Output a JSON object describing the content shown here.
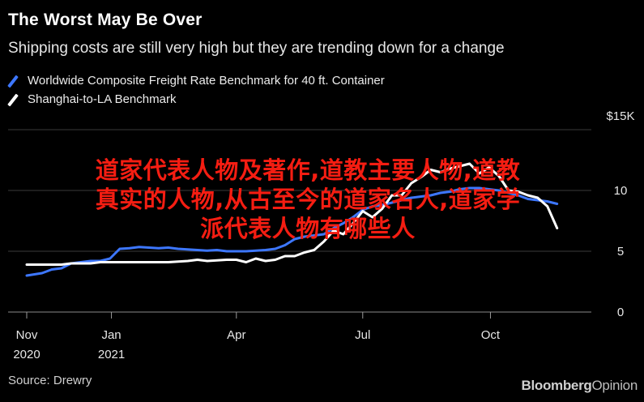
{
  "header": {
    "title": "The Worst May Be Over",
    "subtitle": "Shipping costs are still very high but they are trending down for a change"
  },
  "footer": {
    "source": "Source: Drewry",
    "brand_main": "Bloomberg",
    "brand_suffix": "Opinion"
  },
  "overlay": {
    "line1": "道家代表人物及著作,道教主要人物,道教",
    "line2": "真实的人物,从古至今的道家名人,道家学",
    "line3": "派代表人物有哪些人"
  },
  "colors": {
    "background": "#000000",
    "series_composite": "#3d77ff",
    "series_shanghai": "#ffffff",
    "gridline": "#3a3a3a",
    "overlay_text": "#f51d12"
  },
  "chart_data": {
    "type": "line",
    "title": "The Worst May Be Over",
    "subtitle": "Shipping costs are still very high but they are trending down for a change",
    "x_ticks": [
      {
        "date": "2020-11-01",
        "label": "Nov",
        "sublabel": "2020"
      },
      {
        "date": "2021-01-01",
        "label": "Jan",
        "sublabel": "2021"
      },
      {
        "date": "2021-04-01",
        "label": "Apr",
        "sublabel": ""
      },
      {
        "date": "2021-07-01",
        "label": "Jul",
        "sublabel": ""
      },
      {
        "date": "2021-10-01",
        "label": "Oct",
        "sublabel": ""
      }
    ],
    "y_ticks": [
      {
        "value": 0,
        "label": "0"
      },
      {
        "value": 5,
        "label": "5"
      },
      {
        "value": 10,
        "label": "10"
      },
      {
        "value": 15,
        "label": "$15K"
      }
    ],
    "ylim": [
      0,
      15
    ],
    "xlim": [
      "2020-11-01",
      "2021-12-01"
    ],
    "grid": true,
    "legend_position": "top-left",
    "series": [
      {
        "name": "Worldwide Composite Freight Rate Benchmark for 40 ft. Container",
        "color": "#3d77ff",
        "points": [
          [
            "2020-11-01",
            3.0
          ],
          [
            "2020-11-12",
            3.2
          ],
          [
            "2020-11-19",
            3.5
          ],
          [
            "2020-11-26",
            3.6
          ],
          [
            "2020-12-03",
            4.0
          ],
          [
            "2020-12-10",
            4.1
          ],
          [
            "2020-12-17",
            4.2
          ],
          [
            "2020-12-24",
            4.2
          ],
          [
            "2020-12-31",
            4.4
          ],
          [
            "2021-01-07",
            5.2
          ],
          [
            "2021-01-14",
            5.25
          ],
          [
            "2021-01-21",
            5.35
          ],
          [
            "2021-01-28",
            5.3
          ],
          [
            "2021-02-04",
            5.25
          ],
          [
            "2021-02-11",
            5.3
          ],
          [
            "2021-02-18",
            5.2
          ],
          [
            "2021-02-25",
            5.15
          ],
          [
            "2021-03-04",
            5.1
          ],
          [
            "2021-03-11",
            5.05
          ],
          [
            "2021-03-18",
            5.1
          ],
          [
            "2021-03-25",
            5.0
          ],
          [
            "2021-04-01",
            5.0
          ],
          [
            "2021-04-08",
            5.0
          ],
          [
            "2021-04-15",
            5.05
          ],
          [
            "2021-04-22",
            5.1
          ],
          [
            "2021-04-29",
            5.2
          ],
          [
            "2021-05-06",
            5.5
          ],
          [
            "2021-05-13",
            6.0
          ],
          [
            "2021-05-20",
            6.2
          ],
          [
            "2021-05-27",
            6.3
          ],
          [
            "2021-06-03",
            6.4
          ],
          [
            "2021-06-10",
            6.9
          ],
          [
            "2021-06-17",
            7.3
          ],
          [
            "2021-06-24",
            7.8
          ],
          [
            "2021-07-01",
            8.4
          ],
          [
            "2021-07-08",
            8.7
          ],
          [
            "2021-07-15",
            8.8
          ],
          [
            "2021-07-22",
            9.0
          ],
          [
            "2021-07-29",
            9.2
          ],
          [
            "2021-08-05",
            9.4
          ],
          [
            "2021-08-12",
            9.5
          ],
          [
            "2021-08-19",
            9.6
          ],
          [
            "2021-08-26",
            9.8
          ],
          [
            "2021-09-02",
            9.9
          ],
          [
            "2021-09-09",
            10.1
          ],
          [
            "2021-09-16",
            10.2
          ],
          [
            "2021-09-23",
            10.2
          ],
          [
            "2021-09-30",
            10.1
          ],
          [
            "2021-10-07",
            10.0
          ],
          [
            "2021-10-14",
            9.8
          ],
          [
            "2021-10-21",
            9.6
          ],
          [
            "2021-10-28",
            9.3
          ],
          [
            "2021-11-04",
            9.2
          ],
          [
            "2021-11-11",
            9.1
          ],
          [
            "2021-11-18",
            8.9
          ]
        ]
      },
      {
        "name": "Shanghai-to-LA Benchmark",
        "color": "#ffffff",
        "points": [
          [
            "2020-11-01",
            3.9
          ],
          [
            "2020-11-12",
            3.9
          ],
          [
            "2020-11-19",
            3.9
          ],
          [
            "2020-11-26",
            3.9
          ],
          [
            "2020-12-03",
            4.0
          ],
          [
            "2020-12-10",
            4.0
          ],
          [
            "2020-12-17",
            4.0
          ],
          [
            "2020-12-24",
            4.1
          ],
          [
            "2020-12-31",
            4.1
          ],
          [
            "2021-01-07",
            4.1
          ],
          [
            "2021-01-14",
            4.1
          ],
          [
            "2021-01-21",
            4.1
          ],
          [
            "2021-01-28",
            4.1
          ],
          [
            "2021-02-04",
            4.1
          ],
          [
            "2021-02-11",
            4.1
          ],
          [
            "2021-02-18",
            4.15
          ],
          [
            "2021-02-25",
            4.2
          ],
          [
            "2021-03-04",
            4.3
          ],
          [
            "2021-03-11",
            4.2
          ],
          [
            "2021-03-18",
            4.25
          ],
          [
            "2021-03-25",
            4.3
          ],
          [
            "2021-04-01",
            4.3
          ],
          [
            "2021-04-08",
            4.1
          ],
          [
            "2021-04-15",
            4.4
          ],
          [
            "2021-04-22",
            4.2
          ],
          [
            "2021-04-29",
            4.3
          ],
          [
            "2021-05-06",
            4.6
          ],
          [
            "2021-05-13",
            4.6
          ],
          [
            "2021-05-20",
            4.9
          ],
          [
            "2021-05-27",
            5.1
          ],
          [
            "2021-06-03",
            5.8
          ],
          [
            "2021-06-10",
            6.7
          ],
          [
            "2021-06-17",
            6.4
          ],
          [
            "2021-06-24",
            7.3
          ],
          [
            "2021-07-01",
            8.3
          ],
          [
            "2021-07-08",
            7.8
          ],
          [
            "2021-07-15",
            8.5
          ],
          [
            "2021-07-22",
            9.6
          ],
          [
            "2021-07-29",
            9.6
          ],
          [
            "2021-08-05",
            10.6
          ],
          [
            "2021-08-12",
            11.1
          ],
          [
            "2021-08-19",
            11.7
          ],
          [
            "2021-08-26",
            11.5
          ],
          [
            "2021-09-02",
            11.8
          ],
          [
            "2021-09-09",
            12.0
          ],
          [
            "2021-09-16",
            12.2
          ],
          [
            "2021-09-23",
            11.4
          ],
          [
            "2021-09-30",
            11.9
          ],
          [
            "2021-10-07",
            11.2
          ],
          [
            "2021-10-14",
            10.0
          ],
          [
            "2021-10-21",
            9.9
          ],
          [
            "2021-10-28",
            9.6
          ],
          [
            "2021-11-04",
            9.4
          ],
          [
            "2021-11-11",
            8.7
          ],
          [
            "2021-11-18",
            6.9
          ]
        ]
      }
    ]
  }
}
